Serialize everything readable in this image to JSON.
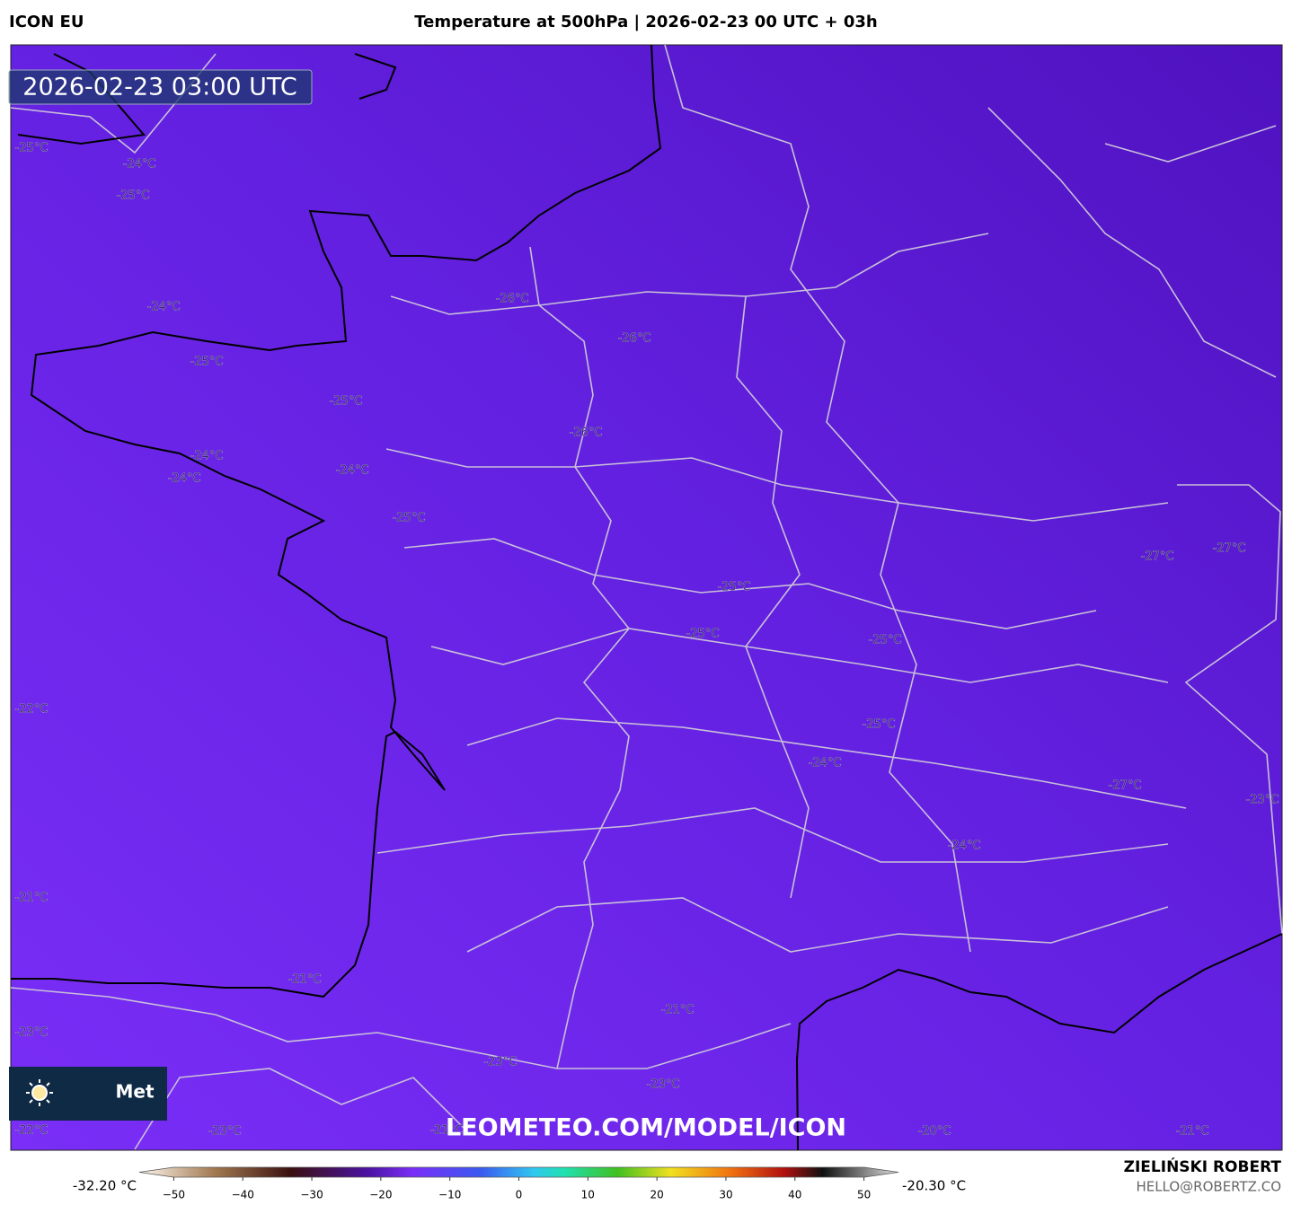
{
  "header": {
    "model": "ICON EU",
    "title": "Temperature at 500hPa | 2026-02-23 00 UTC + 03h"
  },
  "map": {
    "timestamp": "2026-02-23 03:00 UTC",
    "logo_text": "Met",
    "watermark": "LEOMETEO.COM/MODEL/ICON",
    "labels": [
      "-25°C",
      "-24°C",
      "-25°C",
      "-24°C",
      "-26°C",
      "-26°C",
      "-25°C",
      "-25°C",
      "-26°C",
      "-24°C",
      "-24°C",
      "-24°C",
      "-25°C",
      "-27°C",
      "-27°C",
      "-25°C",
      "-25°C",
      "-25°C",
      "-22°C",
      "-25°C",
      "-24°C",
      "-27°C",
      "-23°C",
      "-24°C",
      "-21°C",
      "-21°C",
      "-21°C",
      "-23°C",
      "-23°C",
      "-23°C",
      "-22°C",
      "-23°C",
      "-21°C",
      "-20°C",
      "-21°C"
    ]
  },
  "colorbar": {
    "min_label": "-32.20 °C",
    "max_label": "-20.30 °C",
    "lim": [
      -55,
      55
    ],
    "ticks": [
      {
        "value": -50,
        "label": "−50"
      },
      {
        "value": -40,
        "label": "−40"
      },
      {
        "value": -30,
        "label": "−30"
      },
      {
        "value": -20,
        "label": "−20"
      },
      {
        "value": -10,
        "label": "−10"
      },
      0,
      10,
      20,
      30,
      40,
      50
    ]
  },
  "footer": {
    "author": "ZIELIŃSKI ROBERT",
    "email": "HELLO@ROBERTZ.CO"
  }
}
